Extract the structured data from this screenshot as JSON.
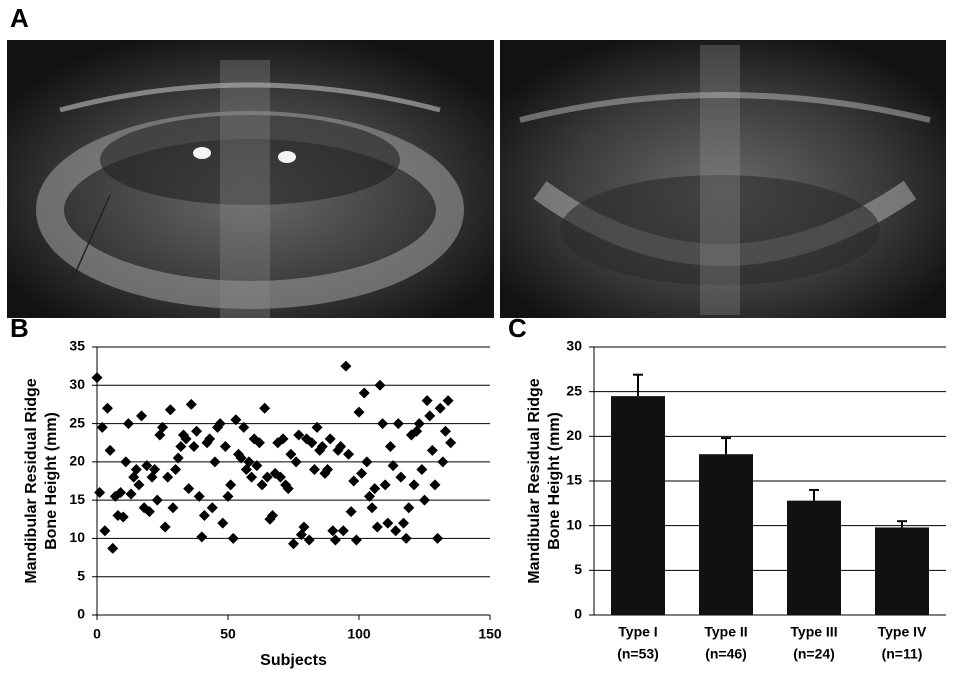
{
  "figure_label": "A",
  "chart_data": [
    {
      "type": "scatter",
      "panel_label": "B",
      "ylabel": [
        "Mandibular Residual Ridge",
        "Bone Height (mm)"
      ],
      "xlabel": "Subjects",
      "x": [
        0,
        1,
        2,
        3,
        4,
        5,
        6,
        7,
        8,
        9,
        10,
        11,
        12,
        13,
        14,
        15,
        16,
        17,
        18,
        19,
        20,
        21,
        22,
        23,
        24,
        25,
        26,
        27,
        28,
        29,
        30,
        31,
        32,
        33,
        34,
        35,
        36,
        37,
        38,
        39,
        40,
        41,
        42,
        43,
        44,
        45,
        46,
        47,
        48,
        49,
        50,
        51,
        52,
        53,
        54,
        55,
        56,
        57,
        58,
        59,
        60,
        61,
        62,
        63,
        64,
        65,
        66,
        67,
        68,
        69,
        70,
        71,
        72,
        73,
        74,
        75,
        76,
        77,
        78,
        79,
        80,
        81,
        82,
        83,
        84,
        85,
        86,
        87,
        88,
        89,
        90,
        91,
        92,
        93,
        94,
        95,
        96,
        97,
        98,
        99,
        100,
        101,
        102,
        103,
        104,
        105,
        106,
        107,
        108,
        109,
        110,
        111,
        112,
        113,
        114,
        115,
        116,
        117,
        118,
        119,
        120,
        121,
        122,
        123,
        124,
        125,
        126,
        127,
        128,
        129,
        130,
        131,
        132,
        133,
        134,
        135
      ],
      "y": [
        31,
        16,
        24.5,
        11,
        27,
        21.5,
        8.7,
        15.5,
        13,
        16,
        12.8,
        20,
        25,
        15.8,
        18,
        19,
        17,
        26,
        14,
        19.5,
        13.5,
        18,
        19,
        15,
        23.5,
        24.5,
        11.5,
        18,
        26.8,
        14,
        19,
        20.5,
        22,
        23.5,
        23,
        16.5,
        27.5,
        22,
        24,
        15.5,
        10.2,
        13,
        22.5,
        23,
        14,
        20,
        24.5,
        25,
        12,
        22,
        15.5,
        17,
        10,
        25.5,
        21,
        20.5,
        24.5,
        19,
        20,
        18,
        23,
        19.5,
        22.5,
        17,
        27,
        18,
        12.5,
        13,
        18.5,
        22.5,
        18,
        23,
        17,
        16.5,
        21,
        9.3,
        20,
        23.5,
        10.5,
        11.5,
        23,
        9.8,
        22.5,
        19,
        24.5,
        21.5,
        22,
        18.5,
        19,
        23,
        11,
        9.8,
        21.5,
        22,
        11,
        32.5,
        21,
        13.5,
        17.5,
        9.8,
        26.5,
        18.5,
        29,
        20,
        15.5,
        14,
        16.5,
        11.5,
        30,
        25,
        17,
        12,
        22,
        19.5,
        11,
        25,
        18,
        12,
        10,
        14,
        23.5,
        17,
        24,
        25,
        19,
        15,
        28,
        26,
        21.5,
        17,
        10,
        27,
        20,
        24,
        28,
        22.5
      ],
      "color": "#000000",
      "xlim": [
        0,
        150
      ],
      "xticks": [
        0,
        50,
        100,
        150
      ],
      "ylim": [
        0,
        35
      ],
      "yticks": [
        0,
        5,
        10,
        15,
        20,
        25,
        30,
        35
      ],
      "grid": true
    },
    {
      "type": "bar",
      "panel_label": "C",
      "ylabel": [
        "Mandibular Residual Ridge",
        "Bone Height (mm)"
      ],
      "categories": [
        "Type I",
        "Type II",
        "Type III",
        "Type IV"
      ],
      "category_notes": [
        "(n=53)",
        "(n=46)",
        "(n=24)",
        "(n=11)"
      ],
      "values": [
        24.5,
        18,
        12.8,
        9.8
      ],
      "errors": [
        2.4,
        1.8,
        1.2,
        0.7
      ],
      "color": "#111111",
      "ylim": [
        0,
        30
      ],
      "yticks": [
        0,
        5,
        10,
        15,
        20,
        25,
        30
      ],
      "grid": true
    }
  ]
}
